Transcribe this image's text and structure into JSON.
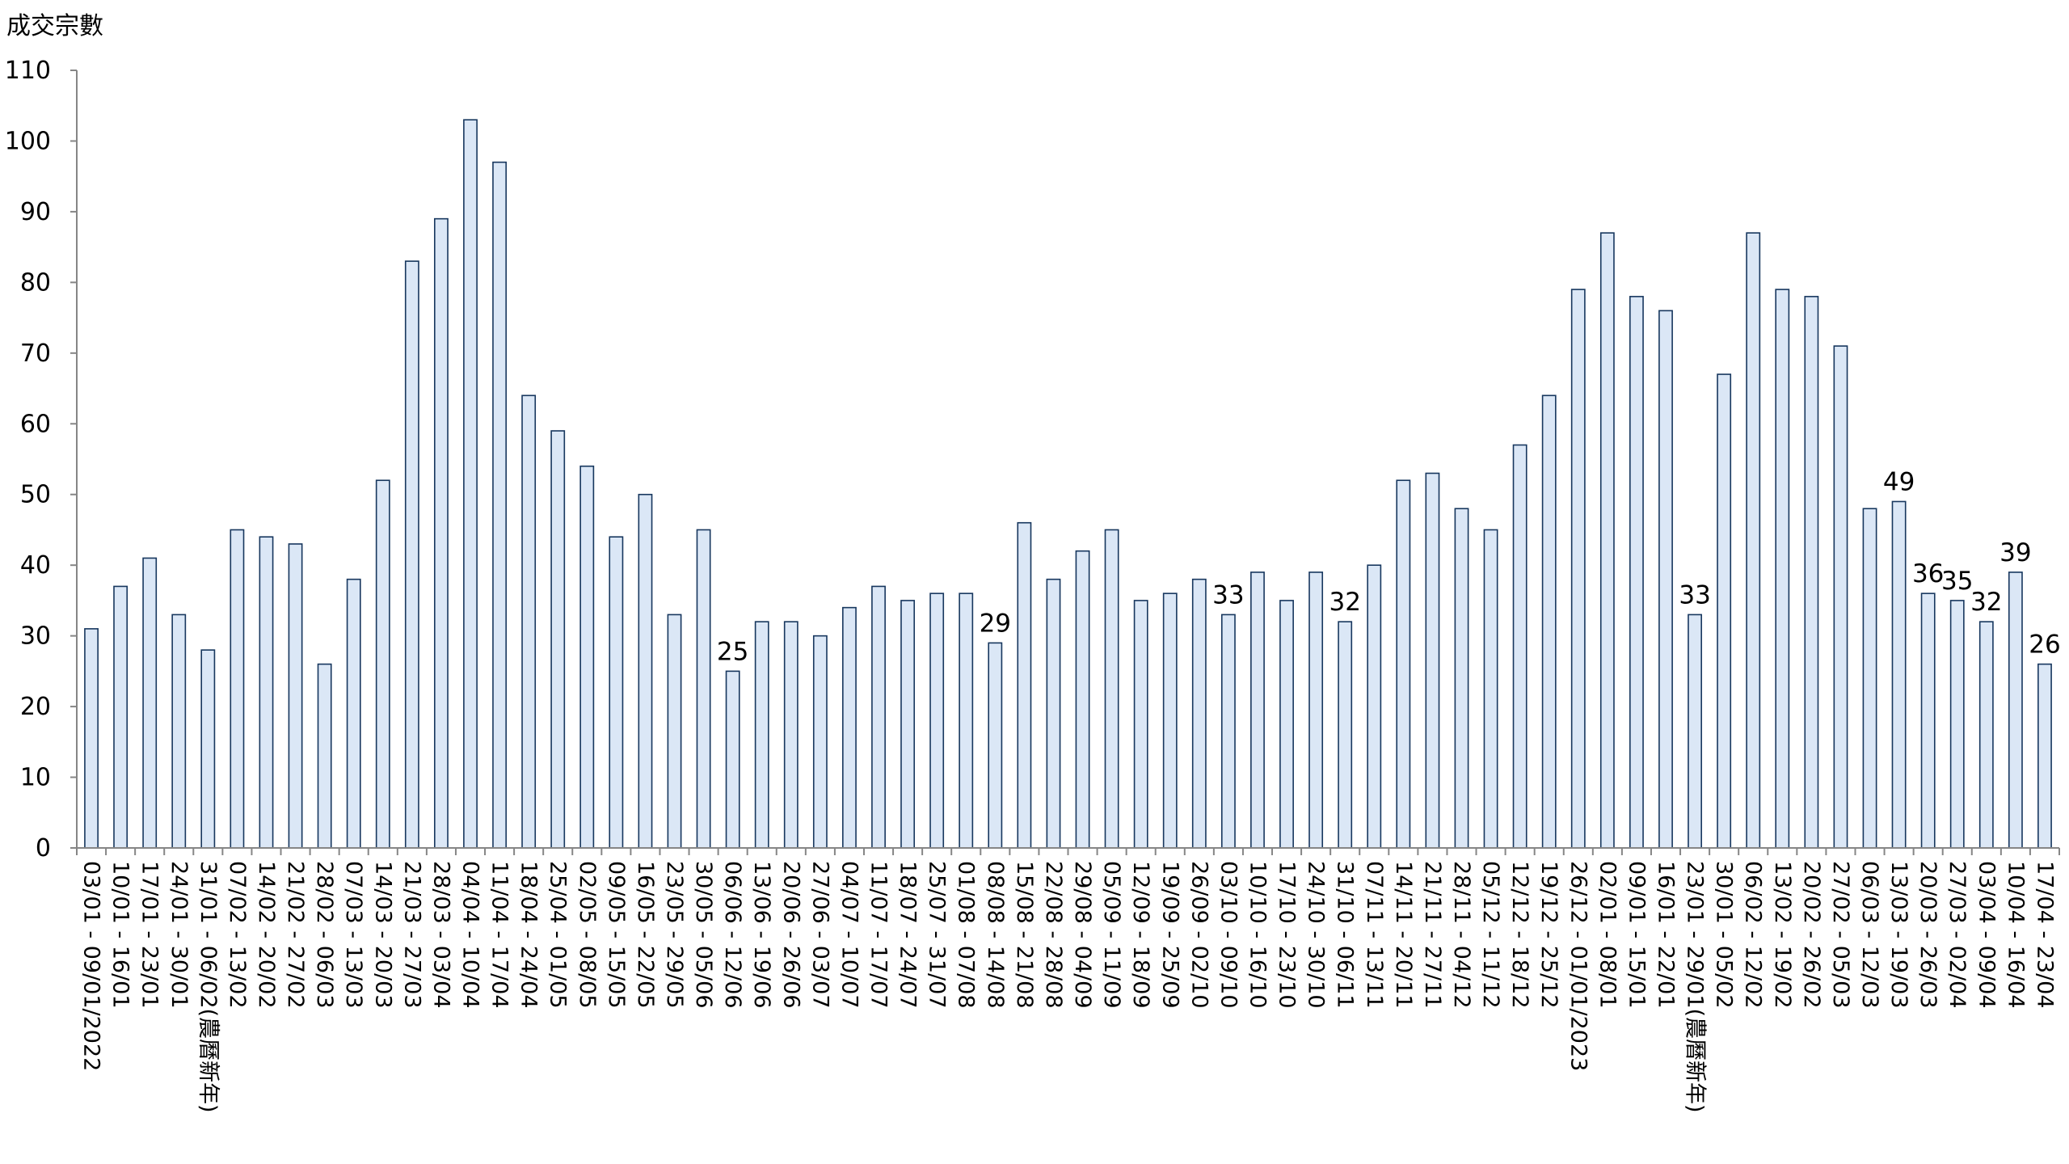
{
  "chart_data": {
    "type": "bar",
    "title": "",
    "xlabel": "",
    "ylabel": "成交宗數",
    "ylim": [
      0,
      110
    ],
    "yticks": [
      0,
      10,
      20,
      30,
      40,
      50,
      60,
      70,
      80,
      90,
      100,
      110
    ],
    "grid": false,
    "legend": "none",
    "bar_fill": "#dbe7f6",
    "bar_stroke": "#17375e",
    "categories": [
      "03/01 - 09/01/2022",
      "10/01 - 16/01",
      "17/01 - 23/01",
      "24/01 - 30/01",
      "31/01 - 06/02(農曆新年)",
      "07/02 - 13/02",
      "14/02 - 20/02",
      "21/02 - 27/02",
      "28/02 - 06/03",
      "07/03 - 13/03",
      "14/03 - 20/03",
      "21/03 - 27/03",
      "28/03 - 03/04",
      "04/04 - 10/04",
      "11/04 - 17/04",
      "18/04 - 24/04",
      "25/04 - 01/05",
      "02/05 - 08/05",
      "09/05 - 15/05",
      "16/05 - 22/05",
      "23/05 - 29/05",
      "30/05 - 05/06",
      "06/06 - 12/06",
      "13/06 - 19/06",
      "20/06 - 26/06",
      "27/06 - 03/07",
      "04/07 - 10/07",
      "11/07 - 17/07",
      "18/07 - 24/07",
      "25/07 - 31/07",
      "01/08 - 07/08",
      "08/08 - 14/08",
      "15/08 - 21/08",
      "22/08 - 28/08",
      "29/08 - 04/09",
      "05/09 - 11/09",
      "12/09 - 18/09",
      "19/09 - 25/09",
      "26/09 - 02/10",
      "03/10 - 09/10",
      "10/10 - 16/10",
      "17/10 - 23/10",
      "24/10 - 30/10",
      "31/10 - 06/11",
      "07/11 - 13/11",
      "14/11 - 20/11",
      "21/11 - 27/11",
      "28/11 - 04/12",
      "05/12 - 11/12",
      "12/12 - 18/12",
      "19/12 - 25/12",
      "26/12 - 01/01/2023",
      "02/01 - 08/01",
      "09/01 - 15/01",
      "16/01 - 22/01",
      "23/01 - 29/01(農曆新年)",
      "30/01 - 05/02",
      "06/02 - 12/02",
      "13/02 - 19/02",
      "20/02 - 26/02",
      "27/02 - 05/03",
      "06/03 - 12/03",
      "13/03 - 19/03",
      "20/03 - 26/03",
      "27/03 - 02/04",
      "03/04 - 09/04",
      "10/04 - 16/04",
      "17/04 - 23/04"
    ],
    "values": [
      31,
      37,
      41,
      33,
      28,
      45,
      44,
      43,
      26,
      38,
      52,
      83,
      89,
      103,
      97,
      64,
      59,
      54,
      44,
      50,
      33,
      45,
      25,
      32,
      32,
      30,
      34,
      37,
      35,
      36,
      36,
      29,
      46,
      38,
      42,
      45,
      35,
      36,
      38,
      33,
      39,
      35,
      39,
      32,
      40,
      52,
      53,
      48,
      45,
      57,
      64,
      79,
      87,
      78,
      76,
      33,
      67,
      87,
      79,
      78,
      71,
      48,
      49,
      36,
      35,
      32,
      39,
      26
    ],
    "data_labels": [
      {
        "index": 22,
        "text": "25"
      },
      {
        "index": 31,
        "text": "29"
      },
      {
        "index": 39,
        "text": "33"
      },
      {
        "index": 43,
        "text": "32"
      },
      {
        "index": 55,
        "text": "33"
      },
      {
        "index": 62,
        "text": "49"
      },
      {
        "index": 63,
        "text": "36"
      },
      {
        "index": 64,
        "text": "35"
      },
      {
        "index": 65,
        "text": "32"
      },
      {
        "index": 66,
        "text": "39"
      },
      {
        "index": 67,
        "text": "26"
      }
    ]
  }
}
